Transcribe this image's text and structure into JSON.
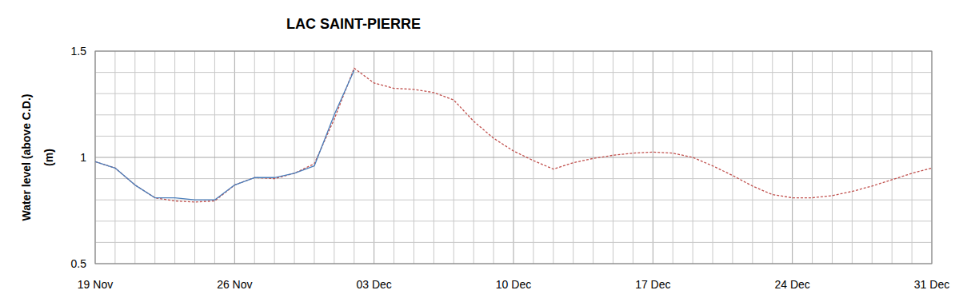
{
  "chart_data": {
    "type": "line",
    "title": "LAC SAINT-PIERRE",
    "y_label": "Water level (above C.D.)\n(m)",
    "categories": [
      "19 Nov",
      null,
      null,
      null,
      null,
      null,
      null,
      "26 Nov",
      null,
      null,
      null,
      null,
      null,
      null,
      "03 Dec",
      null,
      null,
      null,
      null,
      null,
      null,
      "10 Dec",
      null,
      null,
      null,
      null,
      null,
      null,
      "17 Dec",
      null,
      null,
      null,
      null,
      null,
      null,
      "24 Dec",
      null,
      null,
      null,
      null,
      null,
      null,
      "31 Dec"
    ],
    "series": [
      {
        "color": "#4a7ebb",
        "line_style": "solid",
        "values": [
          0.98,
          0.95,
          0.87,
          0.81,
          0.81,
          0.8,
          0.8,
          0.87,
          0.905,
          0.905,
          0.925,
          0.96,
          1.2,
          1.41,
          null,
          null,
          null,
          null,
          null,
          null,
          null,
          null,
          null,
          null,
          null,
          null,
          null,
          null,
          null,
          null,
          null,
          null,
          null,
          null,
          null,
          null,
          null,
          null,
          null,
          null,
          null,
          null,
          null
        ]
      },
      {
        "color": "#c0504d",
        "line_style": "dashed",
        "values": [
          0.98,
          0.95,
          0.87,
          0.81,
          0.795,
          0.79,
          0.795,
          0.87,
          0.905,
          0.9,
          0.925,
          0.97,
          1.18,
          1.42,
          1.35,
          1.325,
          1.32,
          1.305,
          1.27,
          1.17,
          1.09,
          1.03,
          0.985,
          0.945,
          0.975,
          0.995,
          1.01,
          1.02,
          1.025,
          1.02,
          1.0,
          0.96,
          0.915,
          0.865,
          0.825,
          0.81,
          0.81,
          0.82,
          0.84,
          0.865,
          0.895,
          0.925,
          0.95
        ]
      }
    ],
    "ylim": [
      0.5,
      1.5
    ],
    "yticks": [
      0.5,
      1,
      1.5
    ],
    "grid": true
  }
}
